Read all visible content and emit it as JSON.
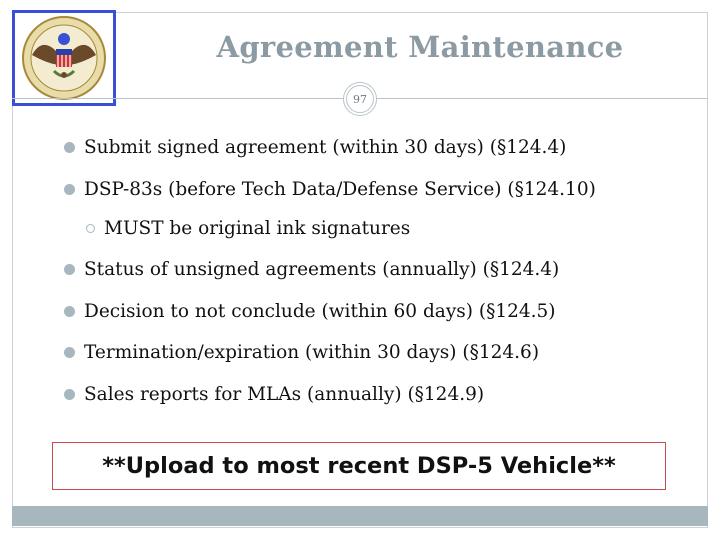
{
  "slide": {
    "title": "Agreement Maintenance",
    "page_number": "97"
  },
  "bullets": [
    "Submit signed agreement (within 30 days)  (§124.4)",
    "DSP-83s (before Tech Data/Defense Service)  (§124.10)",
    "Status of unsigned agreements (annually)  (§124.4)",
    "Decision to not conclude (within 60 days)  (§124.5)",
    "Termination/expiration (within 30 days)  (§124.6)",
    "Sales reports for MLAs (annually)  (§124.9)"
  ],
  "sub_bullet": "MUST be original ink signatures",
  "callout": "**Upload to most recent DSP-5 Vehicle**",
  "colors": {
    "title": "#8c9aa4",
    "accent": "#a7b7bd",
    "seal_border": "#3a4fd6",
    "callout_border": "#c94a4a"
  },
  "icons": {
    "seal": "department-of-state-seal-icon",
    "bullet": "filled-circle-bullet",
    "sub_bullet": "hollow-circle-bullet"
  }
}
